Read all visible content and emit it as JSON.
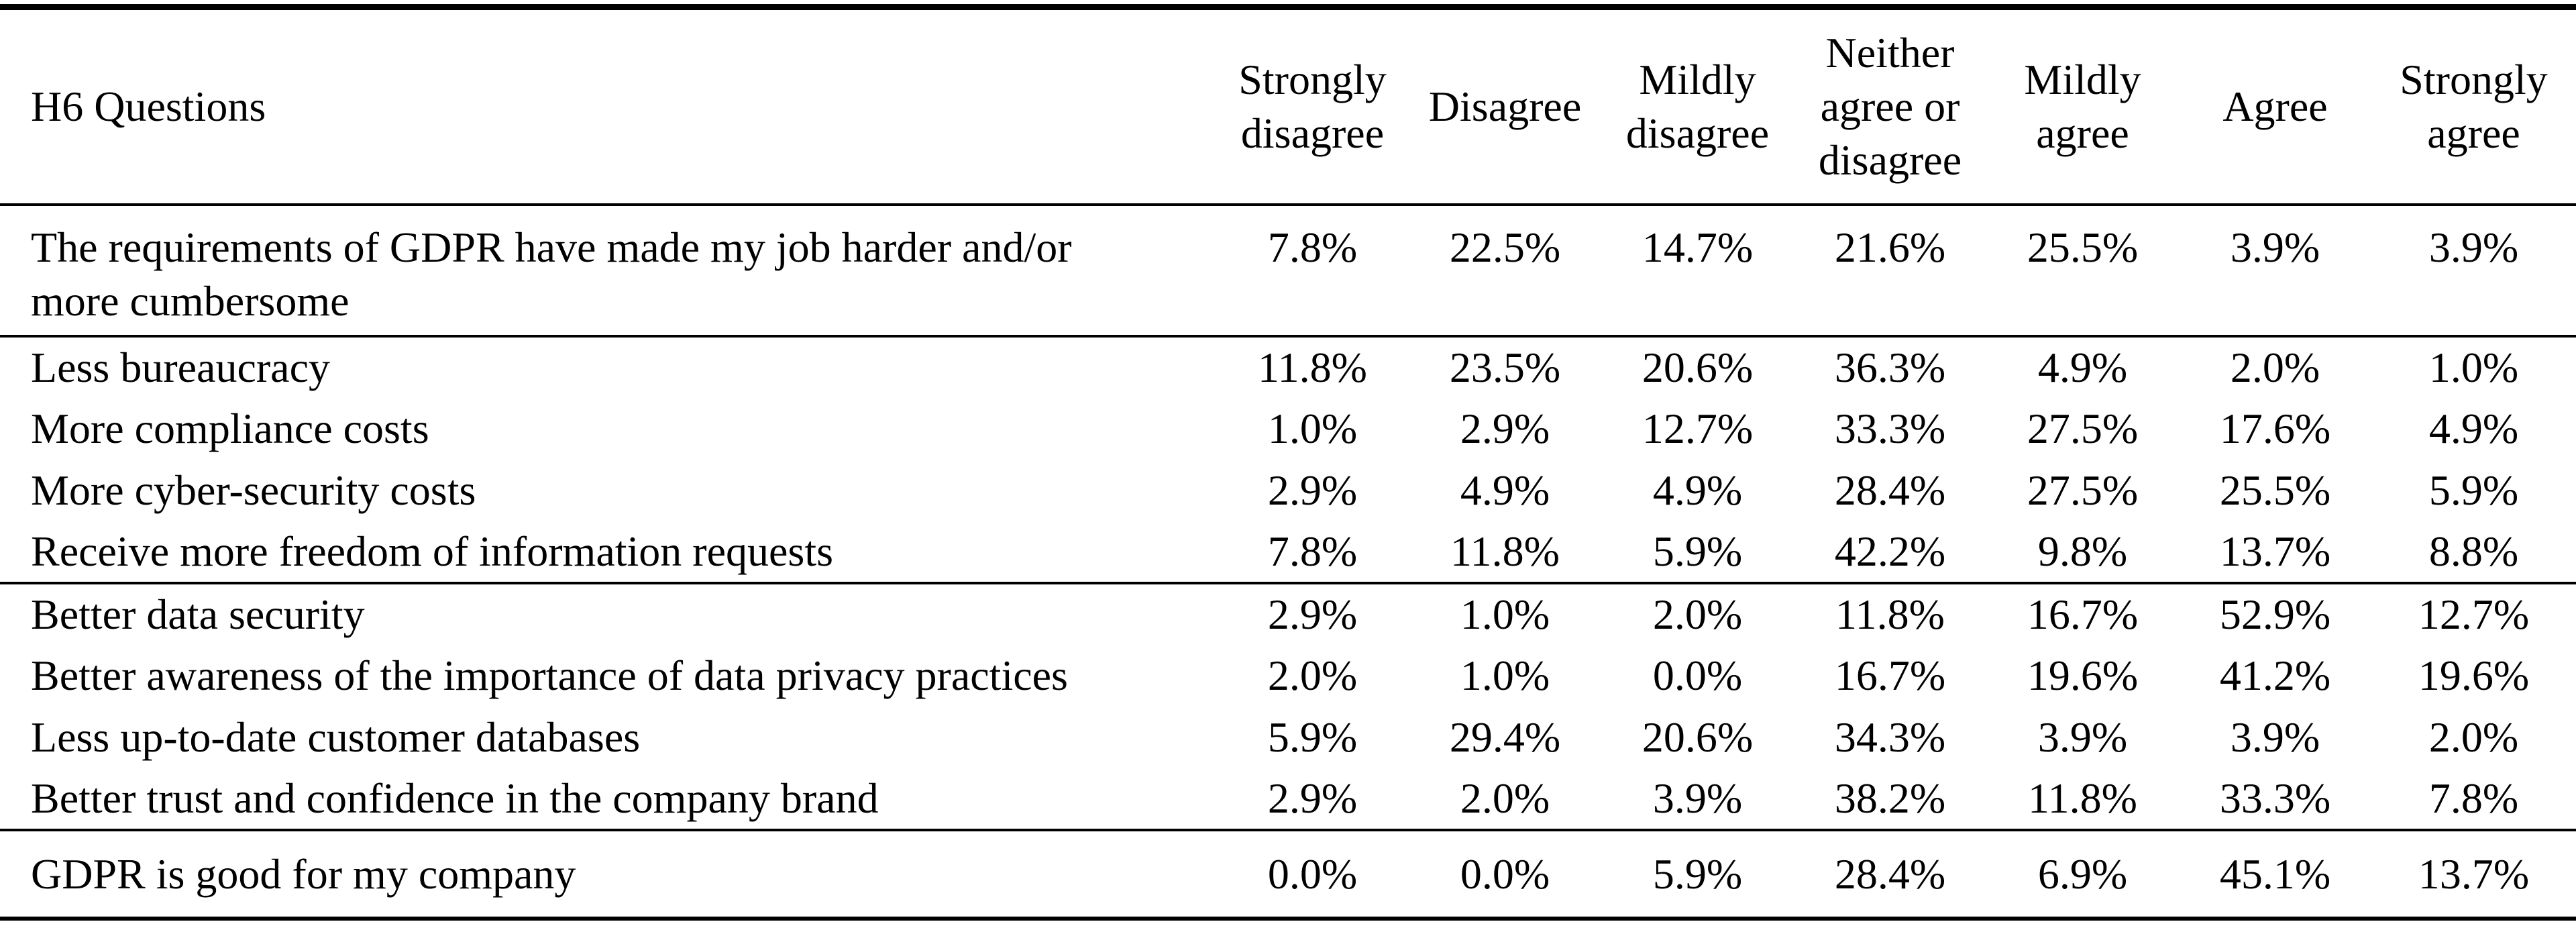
{
  "table": {
    "header": {
      "question_col": "H6 Questions",
      "columns": [
        "Strongly disagree",
        "Disagree",
        "Mildly disagree",
        "Neither agree or disagree",
        "Mildly agree",
        "Agree",
        "Strongly agree"
      ]
    },
    "groups": [
      {
        "rows": [
          {
            "question": "The requirements of GDPR have made my job harder and/or\nmore cumbersome",
            "values": [
              "7.8%",
              "22.5%",
              "14.7%",
              "21.6%",
              "25.5%",
              "3.9%",
              "3.9%"
            ]
          }
        ]
      },
      {
        "rows": [
          {
            "question": "Less bureaucracy",
            "values": [
              "11.8%",
              "23.5%",
              "20.6%",
              "36.3%",
              "4.9%",
              "2.0%",
              "1.0%"
            ]
          },
          {
            "question": "More compliance costs",
            "values": [
              "1.0%",
              "2.9%",
              "12.7%",
              "33.3%",
              "27.5%",
              "17.6%",
              "4.9%"
            ]
          },
          {
            "question": "More cyber-security costs",
            "values": [
              "2.9%",
              "4.9%",
              "4.9%",
              "28.4%",
              "27.5%",
              "25.5%",
              "5.9%"
            ]
          },
          {
            "question": "Receive more freedom of information requests",
            "values": [
              "7.8%",
              "11.8%",
              "5.9%",
              "42.2%",
              "9.8%",
              "13.7%",
              "8.8%"
            ]
          }
        ]
      },
      {
        "rows": [
          {
            "question": "Better data security",
            "values": [
              "2.9%",
              "1.0%",
              "2.0%",
              "11.8%",
              "16.7%",
              "52.9%",
              "12.7%"
            ]
          },
          {
            "question": "Better awareness of the importance of data privacy practices",
            "values": [
              "2.0%",
              "1.0%",
              "0.0%",
              "16.7%",
              "19.6%",
              "41.2%",
              "19.6%"
            ]
          },
          {
            "question": "Less up-to-date customer databases",
            "values": [
              "5.9%",
              "29.4%",
              "20.6%",
              "34.3%",
              "3.9%",
              "3.9%",
              "2.0%"
            ]
          },
          {
            "question": "Better trust and confidence in the company brand",
            "values": [
              "2.9%",
              "2.0%",
              "3.9%",
              "38.2%",
              "11.8%",
              "33.3%",
              "7.8%"
            ]
          }
        ]
      },
      {
        "rows": [
          {
            "question": "GDPR is good for my company",
            "values": [
              "0.0%",
              "0.0%",
              "5.9%",
              "28.4%",
              "6.9%",
              "45.1%",
              "13.7%"
            ]
          }
        ]
      }
    ]
  },
  "colors": {
    "text": "#000000",
    "background": "#ffffff",
    "rule": "#000000"
  }
}
